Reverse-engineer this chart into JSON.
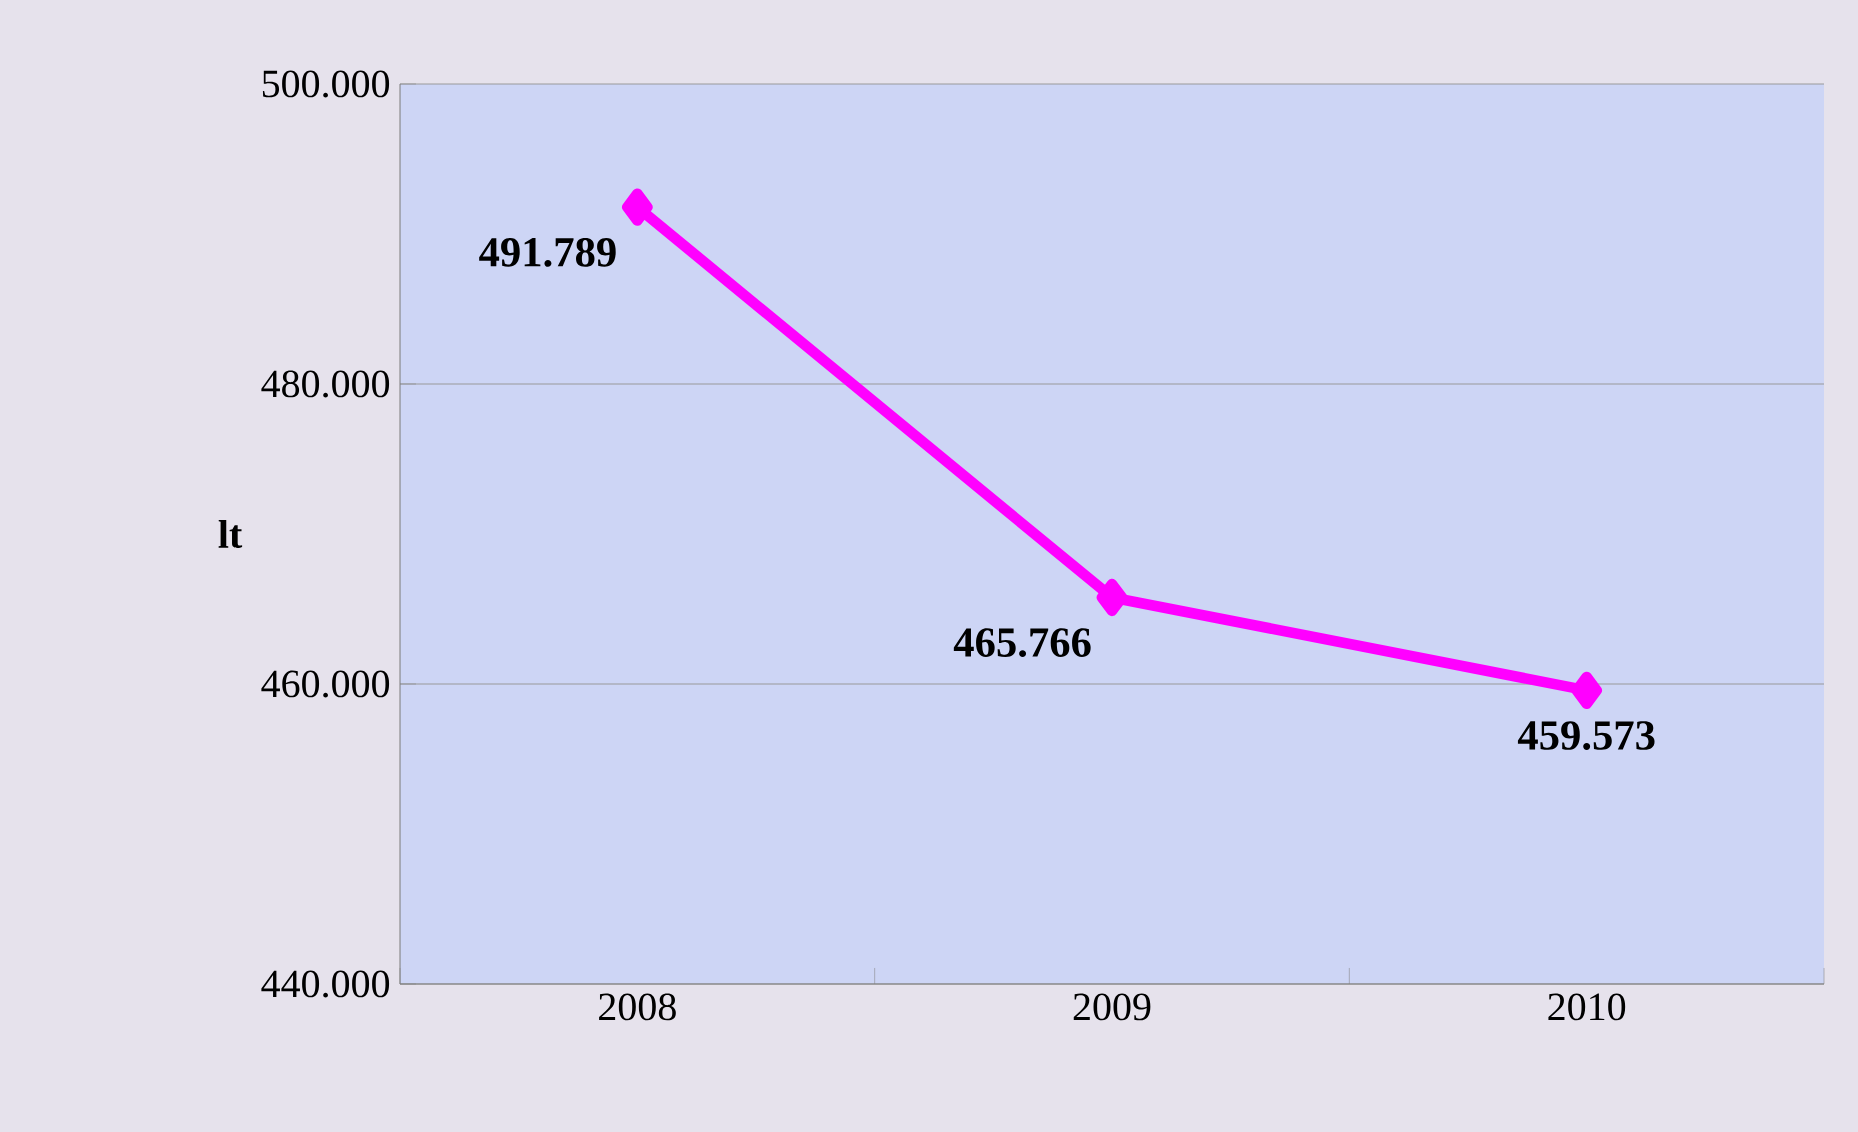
{
  "chart_data": {
    "type": "line",
    "ylabel": "lt",
    "categories": [
      "2008",
      "2009",
      "2010"
    ],
    "series": [
      {
        "color": "#ff00ff",
        "values": [
          491789,
          465766,
          459573
        ],
        "value_labels": [
          "491.789",
          "465.766",
          "459.573"
        ]
      }
    ],
    "ylim": [
      440000,
      500000
    ],
    "yticks": [
      {
        "value": 440000,
        "label": "440.000"
      },
      {
        "value": 460000,
        "label": "460.000"
      },
      {
        "value": 480000,
        "label": "480.000"
      },
      {
        "value": 500000,
        "label": "500.000"
      }
    ],
    "grid": "y",
    "marker": "diamond",
    "line_style": "solid"
  }
}
